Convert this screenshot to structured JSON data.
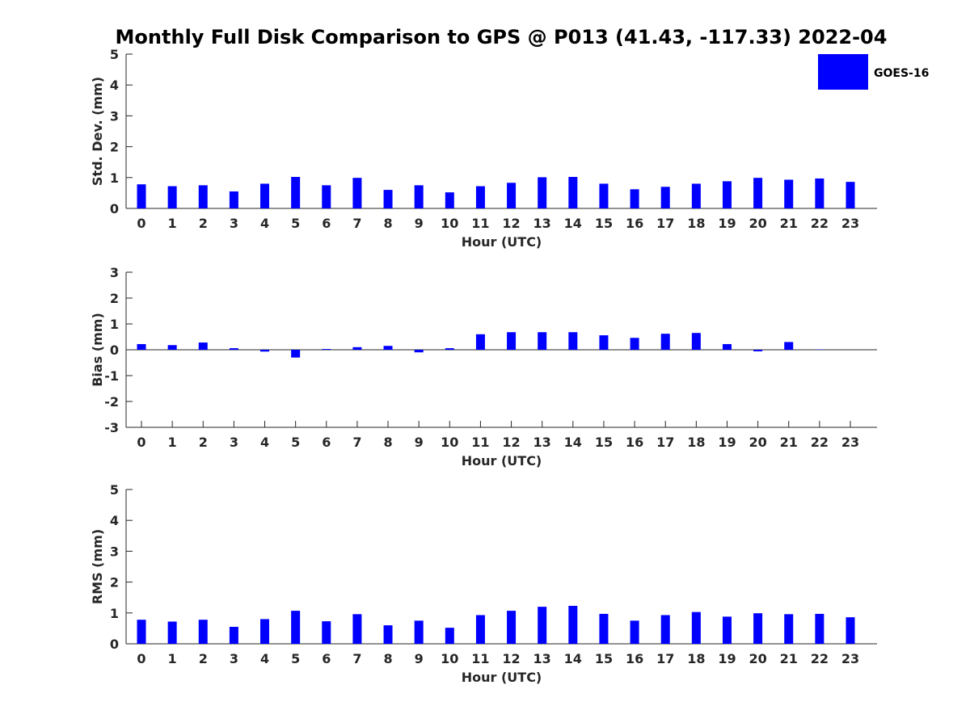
{
  "title": "Monthly Full Disk Comparison to GPS @ P013 (41.43, -117.33) 2022-04",
  "legend": {
    "label": "GOES-16",
    "color": "#0000ff",
    "placement": "top-right"
  },
  "chart_data": [
    {
      "type": "bar",
      "xlabel": "Hour (UTC)",
      "ylabel": "Std. Dev. (mm)",
      "ylim": [
        0,
        5
      ],
      "yticks": [
        0,
        1,
        2,
        3,
        4,
        5
      ],
      "categories": [
        "0",
        "1",
        "2",
        "3",
        "4",
        "5",
        "6",
        "7",
        "8",
        "9",
        "10",
        "11",
        "12",
        "13",
        "14",
        "15",
        "16",
        "17",
        "18",
        "19",
        "20",
        "21",
        "22",
        "23"
      ],
      "series": [
        {
          "name": "GOES-16",
          "values": [
            0.78,
            0.72,
            0.75,
            0.55,
            0.8,
            1.02,
            0.75,
            0.99,
            0.6,
            0.75,
            0.52,
            0.72,
            0.83,
            1.01,
            1.02,
            0.8,
            0.62,
            0.7,
            0.8,
            0.88,
            0.99,
            0.93,
            0.97,
            0.86
          ]
        }
      ]
    },
    {
      "type": "bar",
      "xlabel": "Hour (UTC)",
      "ylabel": "Bias (mm)",
      "ylim": [
        -3,
        3
      ],
      "yticks": [
        -3,
        -2,
        -1,
        0,
        1,
        2,
        3
      ],
      "categories": [
        "0",
        "1",
        "2",
        "3",
        "4",
        "5",
        "6",
        "7",
        "8",
        "9",
        "10",
        "11",
        "12",
        "13",
        "14",
        "15",
        "16",
        "17",
        "18",
        "19",
        "20",
        "21",
        "22",
        "23"
      ],
      "series": [
        {
          "name": "GOES-16",
          "values": [
            0.22,
            0.18,
            0.28,
            0.06,
            -0.07,
            -0.3,
            0.03,
            0.1,
            0.15,
            -0.1,
            0.06,
            0.6,
            0.68,
            0.68,
            0.68,
            0.56,
            0.46,
            0.62,
            0.65,
            0.22,
            -0.06,
            0.3,
            0.01,
            0.0
          ]
        }
      ]
    },
    {
      "type": "bar",
      "xlabel": "Hour (UTC)",
      "ylabel": "RMS (mm)",
      "ylim": [
        0,
        5
      ],
      "yticks": [
        0,
        1,
        2,
        3,
        4,
        5
      ],
      "categories": [
        "0",
        "1",
        "2",
        "3",
        "4",
        "5",
        "6",
        "7",
        "8",
        "9",
        "10",
        "11",
        "12",
        "13",
        "14",
        "15",
        "16",
        "17",
        "18",
        "19",
        "20",
        "21",
        "22",
        "23"
      ],
      "series": [
        {
          "name": "GOES-16",
          "values": [
            0.78,
            0.72,
            0.78,
            0.55,
            0.8,
            1.07,
            0.73,
            0.96,
            0.6,
            0.75,
            0.52,
            0.93,
            1.07,
            1.2,
            1.23,
            0.97,
            0.75,
            0.93,
            1.03,
            0.88,
            0.99,
            0.96,
            0.97,
            0.86
          ]
        }
      ]
    }
  ]
}
